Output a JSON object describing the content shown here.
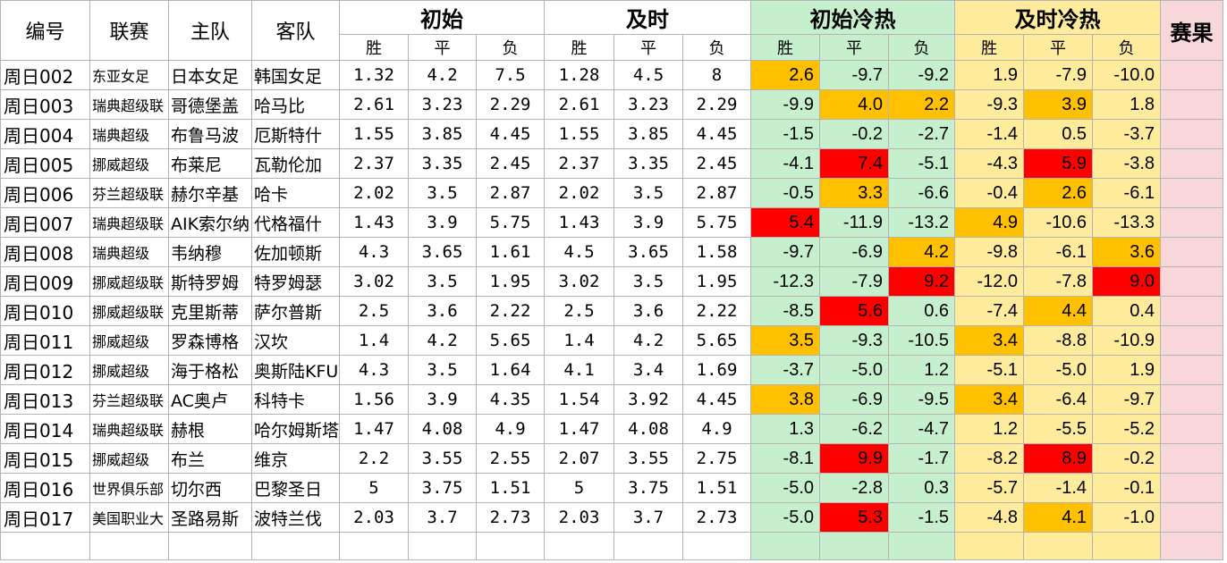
{
  "headers": {
    "id": "编号",
    "league": "联赛",
    "home": "主队",
    "away": "客队",
    "initial": "初始",
    "live": "及时",
    "initial_heat": "初始冷热",
    "live_heat": "及时冷热",
    "result": "赛果",
    "win": "胜",
    "draw": "平",
    "lose": "负"
  },
  "colors": {
    "green": "#c6efce",
    "yellow": "#ffeb9c",
    "pink": "#f8d7da",
    "orange": "#ffc000",
    "red": "#ff0000"
  },
  "rows": [
    {
      "id": "周日002",
      "league": "东亚女足",
      "home": "日本女足",
      "away": "韩国女足",
      "i": [
        "1.32",
        "4.2",
        "7.5"
      ],
      "n": [
        "1.28",
        "4.5",
        "8"
      ],
      "ih": [
        "2.6",
        "-9.7",
        "-9.2"
      ],
      "nh": [
        "1.9",
        "-7.9",
        "-10.0"
      ],
      "ihc": [
        "o",
        "",
        ""
      ],
      "nhc": [
        "",
        "",
        ""
      ]
    },
    {
      "id": "周日003",
      "league": "瑞典超级联",
      "home": "哥德堡盖",
      "away": "哈马比",
      "i": [
        "2.61",
        "3.23",
        "2.29"
      ],
      "n": [
        "2.61",
        "3.23",
        "2.29"
      ],
      "ih": [
        "-9.9",
        "4.0",
        "2.2"
      ],
      "nh": [
        "-9.3",
        "3.9",
        "1.8"
      ],
      "ihc": [
        "",
        "o",
        "o"
      ],
      "nhc": [
        "",
        "o",
        ""
      ]
    },
    {
      "id": "周日004",
      "league": "瑞典超级",
      "home": "布鲁马波",
      "away": "厄斯特什",
      "i": [
        "1.55",
        "3.85",
        "4.45"
      ],
      "n": [
        "1.55",
        "3.85",
        "4.45"
      ],
      "ih": [
        "-1.5",
        "-0.2",
        "-2.7"
      ],
      "nh": [
        "-1.4",
        "0.5",
        "-3.7"
      ],
      "ihc": [
        "",
        "",
        ""
      ],
      "nhc": [
        "",
        "",
        ""
      ]
    },
    {
      "id": "周日005",
      "league": "挪威超级",
      "home": "布莱尼",
      "away": "瓦勒伦加",
      "i": [
        "2.37",
        "3.35",
        "2.45"
      ],
      "n": [
        "2.37",
        "3.35",
        "2.45"
      ],
      "ih": [
        "-4.1",
        "7.4",
        "-5.1"
      ],
      "nh": [
        "-4.3",
        "5.9",
        "-3.8"
      ],
      "ihc": [
        "",
        "r",
        ""
      ],
      "nhc": [
        "",
        "r",
        ""
      ]
    },
    {
      "id": "周日006",
      "league": "芬兰超级联",
      "home": "赫尔辛基",
      "away": "哈卡",
      "i": [
        "2.02",
        "3.5",
        "2.87"
      ],
      "n": [
        "2.02",
        "3.5",
        "2.87"
      ],
      "ih": [
        "-0.5",
        "3.3",
        "-6.6"
      ],
      "nh": [
        "-0.4",
        "2.6",
        "-6.1"
      ],
      "ihc": [
        "",
        "o",
        ""
      ],
      "nhc": [
        "",
        "o",
        ""
      ]
    },
    {
      "id": "周日007",
      "league": "瑞典超级联",
      "home": "AIK索尔纳",
      "away": "代格福什",
      "i": [
        "1.43",
        "3.9",
        "5.75"
      ],
      "n": [
        "1.43",
        "3.9",
        "5.75"
      ],
      "ih": [
        "5.4",
        "-11.9",
        "-13.2"
      ],
      "nh": [
        "4.9",
        "-10.6",
        "-13.3"
      ],
      "ihc": [
        "r",
        "",
        ""
      ],
      "nhc": [
        "o",
        "",
        ""
      ]
    },
    {
      "id": "周日008",
      "league": "瑞典超级",
      "home": "韦纳穆",
      "away": "佐加顿斯",
      "i": [
        "4.3",
        "3.65",
        "1.61"
      ],
      "n": [
        "4.5",
        "3.65",
        "1.58"
      ],
      "ih": [
        "-9.7",
        "-6.9",
        "4.2"
      ],
      "nh": [
        "-9.8",
        "-6.1",
        "3.6"
      ],
      "ihc": [
        "",
        "",
        "o"
      ],
      "nhc": [
        "",
        "",
        "o"
      ]
    },
    {
      "id": "周日009",
      "league": "挪威超级联",
      "home": "斯特罗姆",
      "away": "特罗姆瑟",
      "i": [
        "3.02",
        "3.5",
        "1.95"
      ],
      "n": [
        "3.02",
        "3.5",
        "1.95"
      ],
      "ih": [
        "-12.3",
        "-7.9",
        "9.2"
      ],
      "nh": [
        "-12.0",
        "-7.8",
        "9.0"
      ],
      "ihc": [
        "",
        "",
        "r"
      ],
      "nhc": [
        "",
        "",
        "r"
      ]
    },
    {
      "id": "周日010",
      "league": "挪威超级联",
      "home": "克里斯蒂",
      "away": "萨尔普斯",
      "i": [
        "2.5",
        "3.6",
        "2.22"
      ],
      "n": [
        "2.5",
        "3.6",
        "2.22"
      ],
      "ih": [
        "-8.5",
        "5.6",
        "0.6"
      ],
      "nh": [
        "-7.4",
        "4.4",
        "0.4"
      ],
      "ihc": [
        "",
        "r",
        ""
      ],
      "nhc": [
        "",
        "o",
        ""
      ]
    },
    {
      "id": "周日011",
      "league": "挪威超级",
      "home": "罗森博格",
      "away": "汉坎",
      "i": [
        "1.4",
        "4.2",
        "5.65"
      ],
      "n": [
        "1.4",
        "4.2",
        "5.65"
      ],
      "ih": [
        "3.5",
        "-9.3",
        "-10.5"
      ],
      "nh": [
        "3.4",
        "-8.8",
        "-10.9"
      ],
      "ihc": [
        "o",
        "",
        ""
      ],
      "nhc": [
        "o",
        "",
        ""
      ]
    },
    {
      "id": "周日012",
      "league": "挪威超级",
      "home": "海于格松",
      "away": "奥斯陆KFU",
      "i": [
        "4.3",
        "3.5",
        "1.64"
      ],
      "n": [
        "4.1",
        "3.4",
        "1.69"
      ],
      "ih": [
        "-3.7",
        "-5.0",
        "1.2"
      ],
      "nh": [
        "-5.1",
        "-5.0",
        "1.9"
      ],
      "ihc": [
        "",
        "",
        ""
      ],
      "nhc": [
        "",
        "",
        ""
      ]
    },
    {
      "id": "周日013",
      "league": "芬兰超级联",
      "home": "AC奥卢",
      "away": "科特卡",
      "i": [
        "1.56",
        "3.9",
        "4.35"
      ],
      "n": [
        "1.54",
        "3.92",
        "4.45"
      ],
      "ih": [
        "3.8",
        "-6.9",
        "-9.5"
      ],
      "nh": [
        "3.4",
        "-6.4",
        "-9.7"
      ],
      "ihc": [
        "o",
        "",
        ""
      ],
      "nhc": [
        "o",
        "",
        ""
      ]
    },
    {
      "id": "周日014",
      "league": "瑞典超级联",
      "home": "赫根",
      "away": "哈尔姆斯塔",
      "i": [
        "1.47",
        "4.08",
        "4.9"
      ],
      "n": [
        "1.47",
        "4.08",
        "4.9"
      ],
      "ih": [
        "1.3",
        "-6.2",
        "-4.7"
      ],
      "nh": [
        "1.2",
        "-5.5",
        "-5.2"
      ],
      "ihc": [
        "",
        "",
        ""
      ],
      "nhc": [
        "",
        "",
        ""
      ]
    },
    {
      "id": "周日015",
      "league": "挪威超级",
      "home": "布兰",
      "away": "维京",
      "i": [
        "2.2",
        "3.55",
        "2.55"
      ],
      "n": [
        "2.07",
        "3.55",
        "2.75"
      ],
      "ih": [
        "-8.1",
        "9.9",
        "-1.7"
      ],
      "nh": [
        "-8.2",
        "8.9",
        "-0.2"
      ],
      "ihc": [
        "",
        "r",
        ""
      ],
      "nhc": [
        "",
        "r",
        ""
      ]
    },
    {
      "id": "周日016",
      "league": "世界俱乐部",
      "home": "切尔西",
      "away": "巴黎圣日",
      "i": [
        "5",
        "3.75",
        "1.51"
      ],
      "n": [
        "5",
        "3.75",
        "1.51"
      ],
      "ih": [
        "-5.0",
        "-2.8",
        "0.3"
      ],
      "nh": [
        "-5.7",
        "-1.4",
        "-0.1"
      ],
      "ihc": [
        "",
        "",
        ""
      ],
      "nhc": [
        "",
        "",
        ""
      ]
    },
    {
      "id": "周日017",
      "league": "美国职业大",
      "home": "圣路易斯",
      "away": "波特兰伐",
      "i": [
        "2.03",
        "3.7",
        "2.73"
      ],
      "n": [
        "2.03",
        "3.7",
        "2.73"
      ],
      "ih": [
        "-5.0",
        "5.3",
        "-1.5"
      ],
      "nh": [
        "-4.8",
        "4.1",
        "-1.0"
      ],
      "ihc": [
        "",
        "r",
        ""
      ],
      "nhc": [
        "",
        "o",
        ""
      ]
    }
  ]
}
